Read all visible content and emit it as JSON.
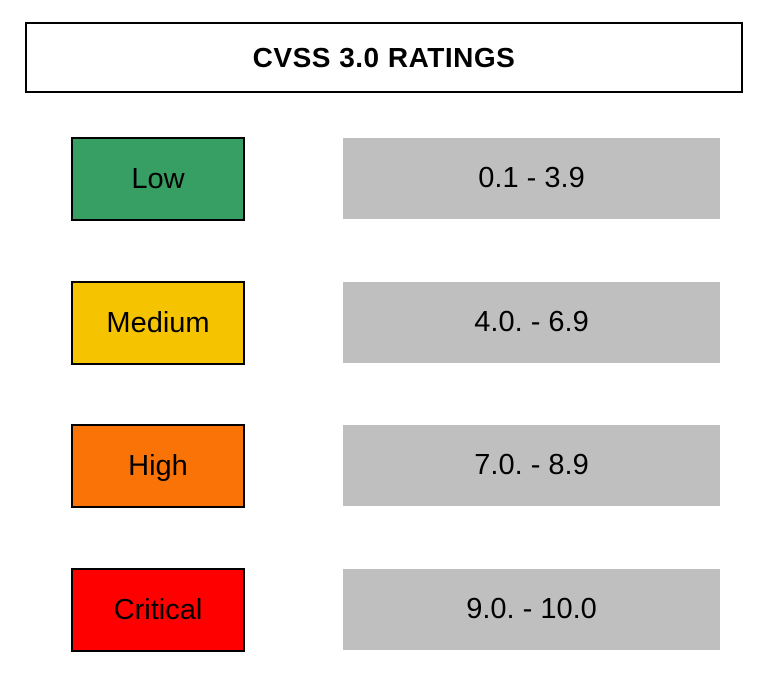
{
  "title": "CVSS 3.0 RATINGS",
  "ratings": [
    {
      "label": "Low",
      "range": "0.1 - 3.9",
      "color": "#379f63"
    },
    {
      "label": "Medium",
      "range": "4.0. - 6.9",
      "color": "#f5c300"
    },
    {
      "label": "High",
      "range": "7.0. - 8.9",
      "color": "#f97306"
    },
    {
      "label": "Critical",
      "range": "9.0. - 10.0",
      "color": "#fe0000"
    }
  ],
  "styles": {
    "range_box_color": "#bfbfbf",
    "border_color": "#000000",
    "text_color": "#000000",
    "background_color": "#ffffff"
  }
}
